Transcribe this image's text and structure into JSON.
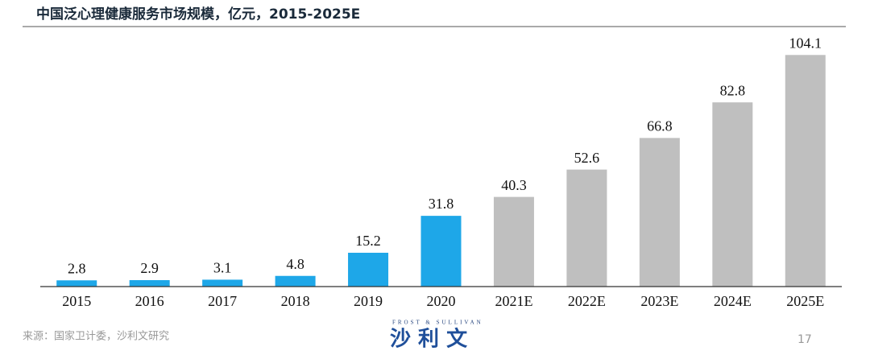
{
  "chart_data": {
    "type": "bar",
    "title": "中国泛心理健康服务市场规模，亿元，2015-2025E",
    "categories": [
      "2015",
      "2016",
      "2017",
      "2018",
      "2019",
      "2020",
      "2021E",
      "2022E",
      "2023E",
      "2024E",
      "2025E"
    ],
    "values": [
      2.8,
      2.9,
      3.1,
      4.8,
      15.2,
      31.8,
      40.3,
      52.6,
      66.8,
      82.8,
      104.1
    ],
    "colors": [
      "#1ea7e8",
      "#1ea7e8",
      "#1ea7e8",
      "#1ea7e8",
      "#1ea7e8",
      "#1ea7e8",
      "#bfbfbf",
      "#bfbfbf",
      "#bfbfbf",
      "#bfbfbf",
      "#bfbfbf"
    ],
    "ylim": [
      0,
      110
    ]
  },
  "footer": {
    "source": "来源：国家卫计委，沙利文研究",
    "logo_en": "FROST & SULLIVAN",
    "logo_cn": "沙 利 文",
    "page": "17"
  }
}
